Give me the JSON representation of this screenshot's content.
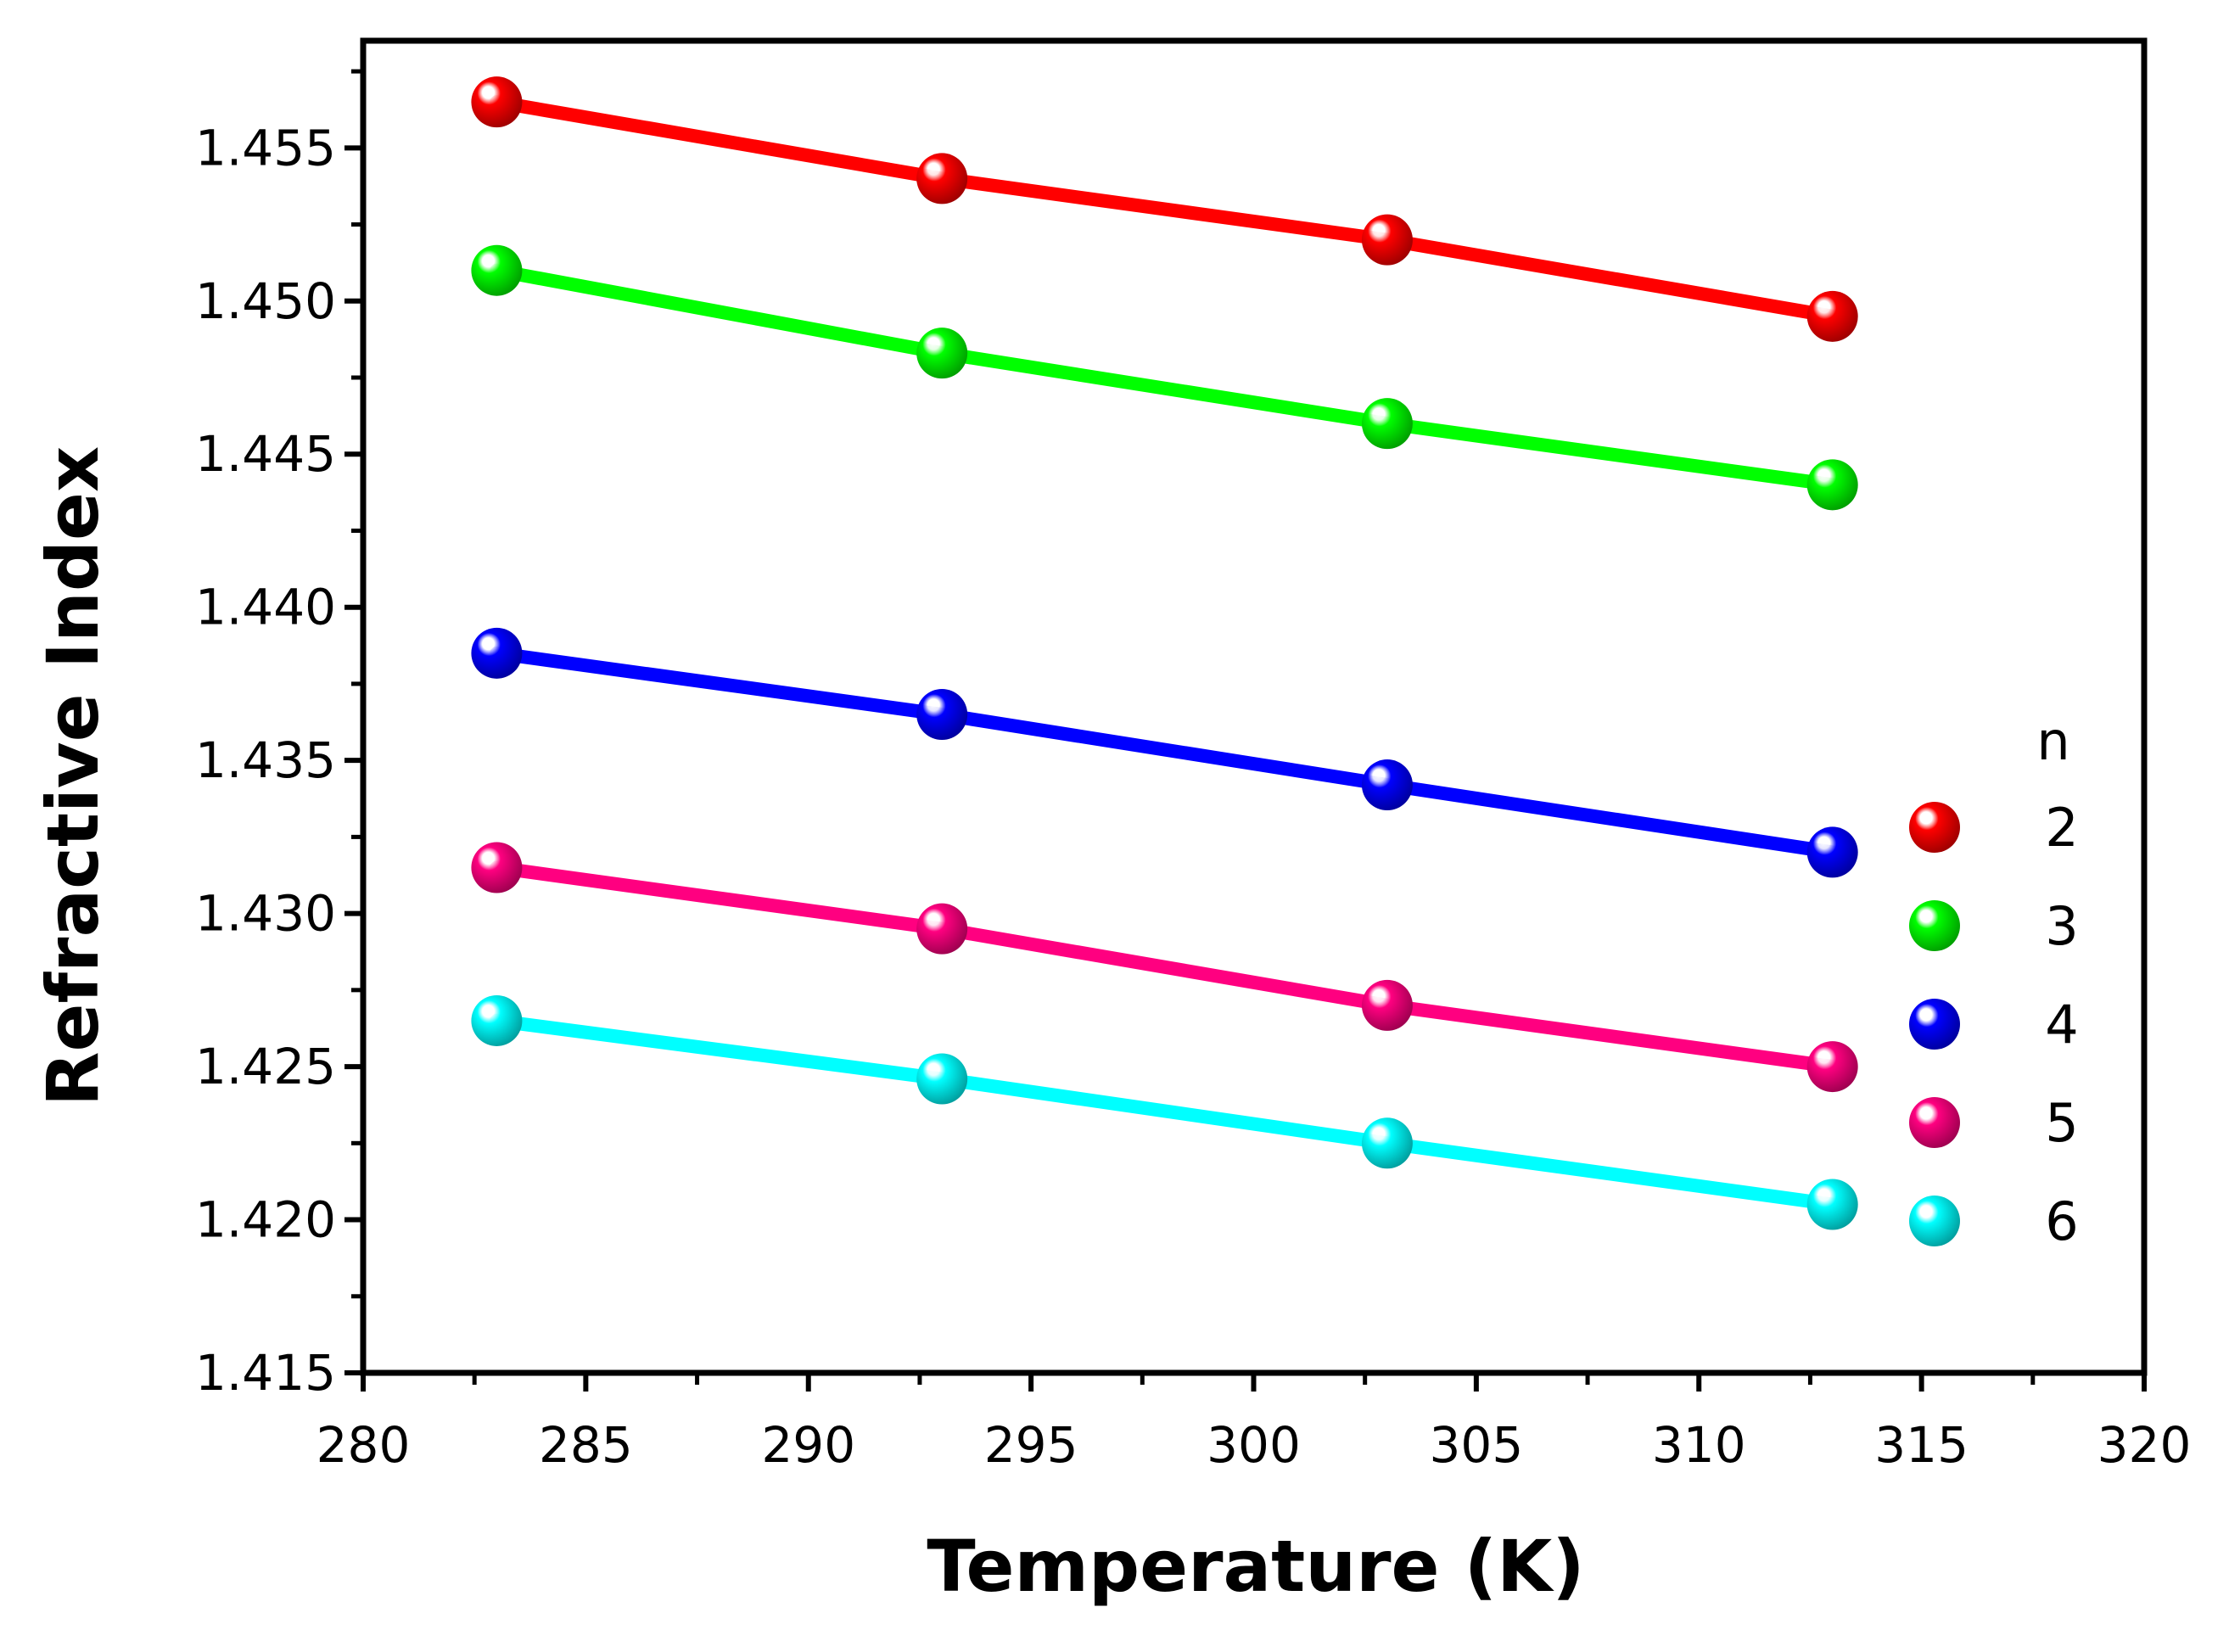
{
  "chart_data": {
    "type": "line",
    "title": "",
    "xlabel": "Temperature (K)",
    "ylabel": "Refractive Index",
    "xlim": [
      280,
      320
    ],
    "ylim": [
      1.415,
      1.4585
    ],
    "x_ticks": [
      "280",
      "285",
      "290",
      "295",
      "300",
      "305",
      "310",
      "315",
      "320"
    ],
    "y_ticks": [
      "1.415",
      "1.420",
      "1.425",
      "1.430",
      "1.435",
      "1.440",
      "1.445",
      "1.450",
      "1.455"
    ],
    "x": [
      283,
      293,
      303,
      313
    ],
    "legend_title": "n",
    "legend_position": "right",
    "series": [
      {
        "name": "2",
        "color": "#ff0000",
        "values": [
          1.4565,
          1.454,
          1.452,
          1.4495
        ]
      },
      {
        "name": "3",
        "color": "#00ff00",
        "values": [
          1.451,
          1.4483,
          1.446,
          1.444
        ]
      },
      {
        "name": "4",
        "color": "#0000ff",
        "values": [
          1.4385,
          1.4365,
          1.4342,
          1.432
        ]
      },
      {
        "name": "5",
        "color": "#ff0080",
        "values": [
          1.4315,
          1.4295,
          1.427,
          1.425
        ]
      },
      {
        "name": "6",
        "color": "#00ffff",
        "values": [
          1.4265,
          1.4246,
          1.4225,
          1.4205
        ]
      }
    ]
  }
}
